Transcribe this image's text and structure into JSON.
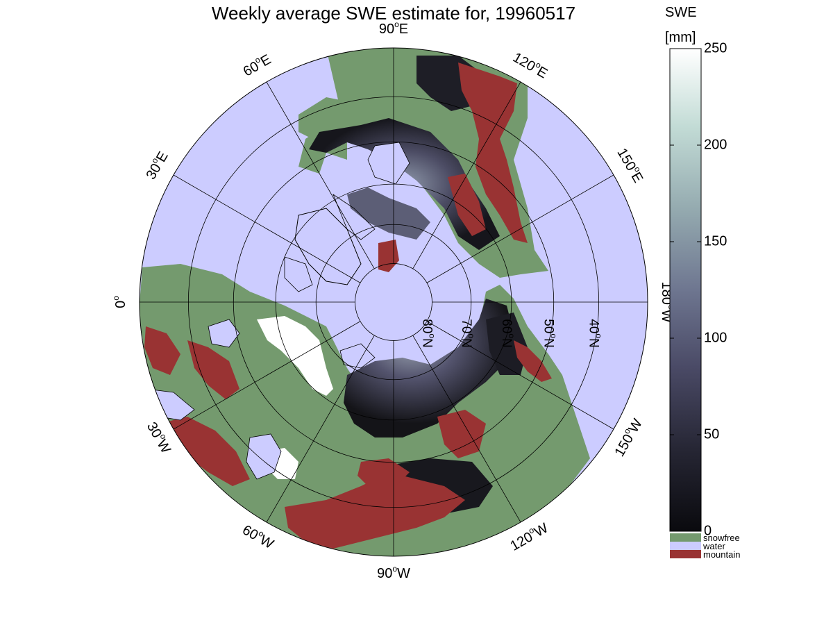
{
  "title": "Weekly average SWE estimate for, 19960517",
  "colorbar": {
    "title_line1": "SWE",
    "title_line2": "[mm]",
    "ticks": [
      {
        "value": 0,
        "label": "0"
      },
      {
        "value": 50,
        "label": "50"
      },
      {
        "value": 100,
        "label": "100"
      },
      {
        "value": 150,
        "label": "150"
      },
      {
        "value": 200,
        "label": "200"
      },
      {
        "value": 250,
        "label": "250"
      }
    ],
    "range": [
      0,
      250
    ],
    "gradient_colors": [
      "#0a0a0e",
      "#262634",
      "#4a4a66",
      "#6e7690",
      "#95abb0",
      "#c3dcd6",
      "#ffffff"
    ]
  },
  "legend": [
    {
      "label": "snowfree",
      "color": "#749a6e"
    },
    {
      "label": "water",
      "color": "#ccccff"
    },
    {
      "label": "mountain",
      "color": "#993333"
    }
  ],
  "map": {
    "projection": "north polar stereographic",
    "longitude_labels": [
      {
        "lon": -90,
        "text": "90",
        "suffix": "W"
      },
      {
        "lon": -120,
        "text": "120",
        "suffix": "W"
      },
      {
        "lon": -150,
        "text": "150",
        "suffix": "W"
      },
      {
        "lon": 180,
        "text": "180",
        "suffix": "W"
      },
      {
        "lon": 150,
        "text": "150",
        "suffix": "E"
      },
      {
        "lon": 120,
        "text": "120",
        "suffix": "E"
      },
      {
        "lon": 90,
        "text": "90",
        "suffix": "E"
      },
      {
        "lon": 60,
        "text": "60",
        "suffix": "E"
      },
      {
        "lon": 30,
        "text": "30",
        "suffix": "E"
      },
      {
        "lon": 0,
        "text": "0",
        "suffix": ""
      },
      {
        "lon": -30,
        "text": "30",
        "suffix": "W"
      },
      {
        "lon": -60,
        "text": "60",
        "suffix": "W"
      }
    ],
    "latitude_labels": [
      {
        "lat": 80,
        "text": "80",
        "suffix": "N"
      },
      {
        "lat": 70,
        "text": "70",
        "suffix": "N"
      },
      {
        "lat": 60,
        "text": "60",
        "suffix": "N"
      },
      {
        "lat": 50,
        "text": "50",
        "suffix": "N"
      },
      {
        "lat": 40,
        "text": "40",
        "suffix": "N"
      }
    ],
    "colors": {
      "water": "#ccccff",
      "snowfree": "#749a6e",
      "mountain": "#993333",
      "swe_dark": "#1a1a22",
      "swe_mid": "#4a4a62",
      "swe_light": "#9aa6b6",
      "snow_white": "#ffffff"
    }
  }
}
